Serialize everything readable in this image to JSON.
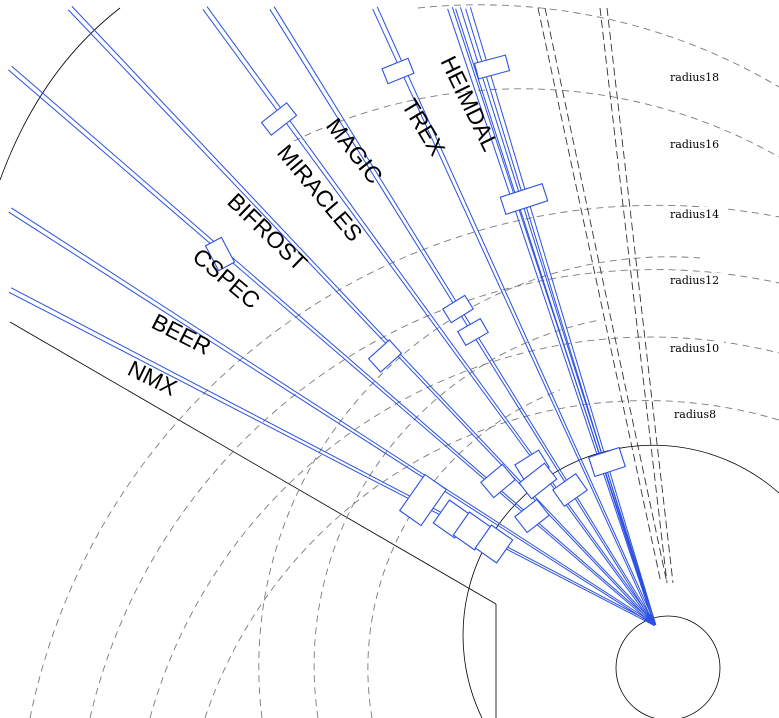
{
  "radius_labels": [
    "radius18",
    "radius16",
    "radius14",
    "radius12",
    "radius10",
    "radius8"
  ],
  "instruments": [
    "HEIMDAL",
    "TREX",
    "MAGIC",
    "MIRACLES",
    "BIFROST",
    "CSPEC",
    "BEER",
    "NMX"
  ]
}
